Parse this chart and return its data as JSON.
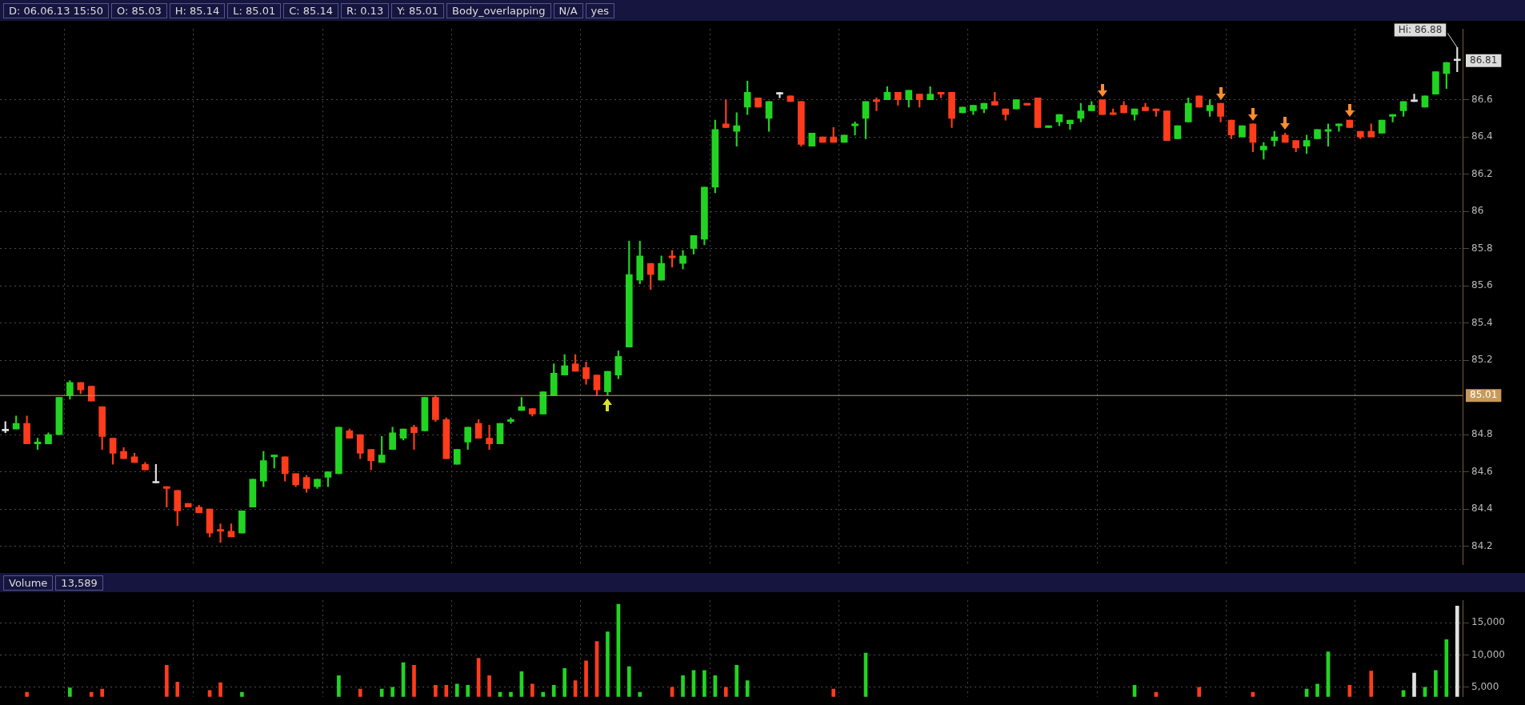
{
  "chart_data": [
    {
      "type": "candlestick",
      "categories": [
        null,
        null,
        null,
        null,
        null,
        null,
        null,
        null,
        null,
        null,
        null,
        null,
        null,
        null,
        null,
        null,
        null,
        null,
        null,
        null,
        null,
        null,
        null,
        null,
        null,
        null,
        null,
        null,
        null,
        null,
        null,
        null,
        null,
        null,
        null,
        null,
        null,
        null,
        null,
        null,
        null,
        null,
        null,
        null,
        null,
        null,
        null,
        null,
        null,
        null,
        null,
        null,
        null,
        null,
        null,
        null,
        null,
        null,
        null,
        null,
        null,
        null,
        null,
        null,
        null,
        null,
        null,
        null,
        null,
        null,
        null,
        null,
        null,
        null,
        null,
        null,
        null,
        null,
        null,
        null,
        null,
        null,
        null,
        null,
        null,
        null,
        null,
        null,
        null,
        null,
        null,
        null,
        null,
        null,
        null,
        null,
        null,
        null,
        null,
        null,
        null,
        null,
        null,
        null,
        null,
        null,
        null,
        null,
        null,
        null,
        null,
        null,
        null,
        null,
        null,
        null,
        null,
        null,
        null,
        null,
        null,
        null,
        null,
        null,
        null,
        null,
        null,
        null,
        null,
        null,
        null,
        null,
        null,
        null,
        null,
        null
      ],
      "ohlc": [
        [
          84.82,
          84.87,
          84.81,
          84.82
        ],
        [
          84.83,
          84.9,
          84.83,
          84.86
        ],
        [
          84.86,
          84.9,
          84.75,
          84.75
        ],
        [
          84.75,
          84.78,
          84.72,
          84.76
        ],
        [
          84.75,
          84.81,
          84.75,
          84.8
        ],
        [
          84.8,
          85.0,
          84.8,
          85.0
        ],
        [
          85.01,
          85.09,
          84.99,
          85.08
        ],
        [
          85.08,
          85.08,
          85.02,
          85.04
        ],
        [
          85.06,
          85.06,
          84.98,
          84.98
        ],
        [
          84.95,
          84.95,
          84.72,
          84.79
        ],
        [
          84.78,
          84.78,
          84.64,
          84.7
        ],
        [
          84.71,
          84.73,
          84.67,
          84.67
        ],
        [
          84.68,
          84.7,
          84.65,
          84.65
        ],
        [
          84.64,
          84.65,
          84.61,
          84.61
        ],
        [
          84.54,
          84.64,
          84.54,
          84.54
        ],
        [
          84.52,
          84.52,
          84.41,
          84.51
        ],
        [
          84.5,
          84.5,
          84.31,
          84.39
        ],
        [
          84.43,
          84.43,
          84.41,
          84.41
        ],
        [
          84.41,
          84.42,
          84.38,
          84.38
        ],
        [
          84.4,
          84.4,
          84.25,
          84.27
        ],
        [
          84.29,
          84.32,
          84.22,
          84.28
        ],
        [
          84.28,
          84.32,
          84.25,
          84.25
        ],
        [
          84.27,
          84.39,
          84.27,
          84.39
        ],
        [
          84.41,
          84.56,
          84.41,
          84.56
        ],
        [
          84.55,
          84.71,
          84.52,
          84.66
        ],
        [
          84.68,
          84.69,
          84.62,
          84.69
        ],
        [
          84.68,
          84.68,
          84.55,
          84.59
        ],
        [
          84.59,
          84.59,
          84.52,
          84.53
        ],
        [
          84.57,
          84.58,
          84.49,
          84.51
        ],
        [
          84.52,
          84.56,
          84.51,
          84.56
        ],
        [
          84.57,
          84.6,
          84.52,
          84.6
        ],
        [
          84.59,
          84.84,
          84.59,
          84.84
        ],
        [
          84.82,
          84.83,
          84.78,
          84.78
        ],
        [
          84.8,
          84.8,
          84.67,
          84.7
        ],
        [
          84.72,
          84.72,
          84.61,
          84.66
        ],
        [
          84.65,
          84.79,
          84.65,
          84.69
        ],
        [
          84.72,
          84.84,
          84.72,
          84.81
        ],
        [
          84.78,
          84.83,
          84.77,
          84.83
        ],
        [
          84.84,
          84.85,
          84.72,
          84.81
        ],
        [
          84.82,
          85.0,
          84.82,
          85.0
        ],
        [
          85.0,
          85.01,
          84.87,
          84.88
        ],
        [
          84.88,
          84.89,
          84.67,
          84.67
        ],
        [
          84.64,
          84.72,
          84.64,
          84.72
        ],
        [
          84.76,
          84.84,
          84.72,
          84.84
        ],
        [
          84.86,
          84.88,
          84.78,
          84.78
        ],
        [
          84.78,
          84.85,
          84.72,
          84.75
        ],
        [
          84.75,
          84.86,
          84.75,
          84.86
        ],
        [
          84.87,
          84.89,
          84.86,
          84.88
        ],
        [
          84.93,
          85.0,
          84.93,
          84.95
        ],
        [
          84.94,
          84.94,
          84.9,
          84.91
        ],
        [
          84.91,
          85.03,
          84.91,
          85.03
        ],
        [
          85.01,
          85.18,
          85.01,
          85.13
        ],
        [
          85.12,
          85.23,
          85.12,
          85.17
        ],
        [
          85.18,
          85.23,
          85.14,
          85.14
        ],
        [
          85.16,
          85.19,
          85.07,
          85.1
        ],
        [
          85.12,
          85.12,
          85.01,
          85.04
        ],
        [
          85.03,
          85.14,
          85.01,
          85.14
        ],
        [
          85.12,
          85.25,
          85.1,
          85.22
        ],
        [
          85.27,
          85.84,
          85.27,
          85.66
        ],
        [
          85.63,
          85.84,
          85.61,
          85.76
        ],
        [
          85.72,
          85.72,
          85.58,
          85.66
        ],
        [
          85.63,
          85.76,
          85.63,
          85.72
        ],
        [
          85.76,
          85.79,
          85.7,
          85.75
        ],
        [
          85.72,
          85.79,
          85.69,
          85.76
        ],
        [
          85.8,
          85.87,
          85.77,
          85.87
        ],
        [
          85.85,
          86.13,
          85.82,
          86.13
        ],
        [
          86.13,
          86.49,
          86.1,
          86.44
        ],
        [
          86.47,
          86.6,
          86.45,
          86.45
        ],
        [
          86.43,
          86.53,
          86.35,
          86.46
        ],
        [
          86.56,
          86.7,
          86.52,
          86.64
        ],
        [
          86.61,
          86.61,
          86.56,
          86.56
        ],
        [
          86.5,
          86.59,
          86.43,
          86.59
        ],
        [
          86.63,
          86.64,
          86.61,
          86.63
        ],
        [
          86.62,
          86.62,
          86.59,
          86.59
        ],
        [
          86.59,
          86.59,
          86.35,
          86.36
        ],
        [
          86.35,
          86.42,
          86.35,
          86.42
        ],
        [
          86.4,
          86.4,
          86.37,
          86.37
        ],
        [
          86.4,
          86.45,
          86.37,
          86.37
        ],
        [
          86.37,
          86.41,
          86.37,
          86.41
        ],
        [
          86.46,
          86.48,
          86.41,
          86.47
        ],
        [
          86.5,
          86.59,
          86.39,
          86.59
        ],
        [
          86.6,
          86.61,
          86.54,
          86.59
        ],
        [
          86.6,
          86.67,
          86.6,
          86.64
        ],
        [
          86.64,
          86.64,
          86.57,
          86.6
        ],
        [
          86.6,
          86.65,
          86.56,
          86.65
        ],
        [
          86.63,
          86.63,
          86.56,
          86.6
        ],
        [
          86.6,
          86.67,
          86.6,
          86.63
        ],
        [
          86.64,
          86.64,
          86.61,
          86.63
        ],
        [
          86.64,
          86.64,
          86.45,
          86.5
        ],
        [
          86.53,
          86.56,
          86.53,
          86.56
        ],
        [
          86.54,
          86.57,
          86.52,
          86.57
        ],
        [
          86.55,
          86.58,
          86.53,
          86.58
        ],
        [
          86.59,
          86.64,
          86.57,
          86.57
        ],
        [
          86.55,
          86.55,
          86.49,
          86.52
        ],
        [
          86.55,
          86.6,
          86.55,
          86.6
        ],
        [
          86.58,
          86.58,
          86.57,
          86.57
        ],
        [
          86.61,
          86.61,
          86.45,
          86.45
        ],
        [
          86.45,
          86.46,
          86.45,
          86.46
        ],
        [
          86.48,
          86.52,
          86.46,
          86.52
        ],
        [
          86.47,
          86.49,
          86.44,
          86.49
        ],
        [
          86.5,
          86.58,
          86.48,
          86.54
        ],
        [
          86.54,
          86.59,
          86.54,
          86.57
        ],
        [
          86.6,
          86.6,
          86.52,
          86.52
        ],
        [
          86.53,
          86.55,
          86.52,
          86.52
        ],
        [
          86.57,
          86.59,
          86.53,
          86.53
        ],
        [
          86.52,
          86.55,
          86.49,
          86.55
        ],
        [
          86.56,
          86.58,
          86.54,
          86.54
        ],
        [
          86.55,
          86.55,
          86.51,
          86.54
        ],
        [
          86.54,
          86.54,
          86.38,
          86.38
        ],
        [
          86.39,
          86.46,
          86.39,
          86.46
        ],
        [
          86.48,
          86.61,
          86.48,
          86.58
        ],
        [
          86.62,
          86.62,
          86.56,
          86.56
        ],
        [
          86.54,
          86.6,
          86.51,
          86.57
        ],
        [
          86.58,
          86.58,
          86.48,
          86.51
        ],
        [
          86.49,
          86.49,
          86.39,
          86.41
        ],
        [
          86.4,
          86.46,
          86.4,
          86.46
        ],
        [
          86.47,
          86.47,
          86.32,
          86.37
        ],
        [
          86.33,
          86.37,
          86.28,
          86.35
        ],
        [
          86.38,
          86.43,
          86.35,
          86.4
        ],
        [
          86.41,
          86.42,
          86.37,
          86.37
        ],
        [
          86.38,
          86.38,
          86.32,
          86.34
        ],
        [
          86.35,
          86.41,
          86.31,
          86.38
        ],
        [
          86.39,
          86.44,
          86.39,
          86.44
        ],
        [
          86.43,
          86.47,
          86.35,
          86.44
        ],
        [
          86.46,
          86.47,
          86.43,
          86.47
        ],
        [
          86.49,
          86.49,
          86.45,
          86.45
        ],
        [
          86.43,
          86.43,
          86.39,
          86.4
        ],
        [
          86.43,
          86.47,
          86.4,
          86.4
        ],
        [
          86.42,
          86.49,
          86.42,
          86.49
        ],
        [
          86.51,
          86.52,
          86.48,
          86.52
        ],
        [
          86.54,
          86.59,
          86.51,
          86.59
        ],
        [
          86.59,
          86.63,
          86.59,
          86.59
        ],
        [
          86.56,
          86.62,
          86.56,
          86.62
        ],
        [
          86.63,
          86.75,
          86.63,
          86.75
        ],
        [
          86.74,
          86.8,
          86.66,
          86.8
        ],
        [
          86.81,
          86.88,
          86.75,
          86.81
        ]
      ],
      "colors": [
        "#e0e0e0",
        "#22d422",
        "#ff3c1c",
        "#22d422",
        "#22d422",
        "#22d422",
        "#22d422",
        "#ff3c1c",
        "#ff3c1c",
        "#ff3c1c",
        "#ff3c1c",
        "#ff3c1c",
        "#ff3c1c",
        "#ff3c1c",
        "#e0e0e0",
        "#ff3c1c",
        "#ff3c1c",
        "#ff3c1c",
        "#ff3c1c",
        "#ff3c1c",
        "#ff3c1c",
        "#ff3c1c",
        "#22d422",
        "#22d422",
        "#22d422",
        "#22d422",
        "#ff3c1c",
        "#ff3c1c",
        "#ff3c1c",
        "#22d422",
        "#22d422",
        "#22d422",
        "#ff3c1c",
        "#ff3c1c",
        "#ff3c1c",
        "#22d422",
        "#22d422",
        "#22d422",
        "#ff3c1c",
        "#22d422",
        "#ff3c1c",
        "#ff3c1c",
        "#22d422",
        "#22d422",
        "#ff3c1c",
        "#ff3c1c",
        "#22d422",
        "#22d422",
        "#22d422",
        "#ff3c1c",
        "#22d422",
        "#22d422",
        "#22d422",
        "#ff3c1c",
        "#ff3c1c",
        "#ff3c1c",
        "#22d422",
        "#22d422",
        "#22d422",
        "#22d422",
        "#ff3c1c",
        "#22d422",
        "#ff3c1c",
        "#22d422",
        "#22d422",
        "#22d422",
        "#22d422",
        "#ff3c1c",
        "#22d422",
        "#22d422",
        "#ff3c1c",
        "#22d422",
        "#e0e0e0",
        "#ff3c1c",
        "#ff3c1c",
        "#22d422",
        "#ff3c1c",
        "#ff3c1c",
        "#22d422",
        "#22d422",
        "#22d422",
        "#ff3c1c",
        "#22d422",
        "#ff3c1c",
        "#22d422",
        "#ff3c1c",
        "#22d422",
        "#ff3c1c",
        "#ff3c1c",
        "#22d422",
        "#22d422",
        "#22d422",
        "#ff3c1c",
        "#ff3c1c",
        "#22d422",
        "#ff3c1c",
        "#ff3c1c",
        "#22d422",
        "#22d422",
        "#22d422",
        "#22d422",
        "#22d422",
        "#ff3c1c",
        "#ff3c1c",
        "#ff3c1c",
        "#22d422",
        "#ff3c1c",
        "#ff3c1c",
        "#ff3c1c",
        "#22d422",
        "#22d422",
        "#ff3c1c",
        "#22d422",
        "#ff3c1c",
        "#ff3c1c",
        "#22d422",
        "#ff3c1c",
        "#22d422",
        "#22d422",
        "#ff3c1c",
        "#ff3c1c",
        "#22d422",
        "#22d422",
        "#22d422",
        "#22d422",
        "#ff3c1c",
        "#ff3c1c",
        "#ff3c1c",
        "#22d422",
        "#22d422",
        "#22d422",
        "#e0e0e0",
        "#22d422",
        "#22d422",
        "#22d422",
        "#e0e0e0"
      ],
      "ylim": [
        84.1,
        86.98
      ],
      "yticks": [
        84.2,
        84.4,
        84.6,
        84.8,
        85.2,
        85.4,
        85.6,
        85.8,
        86,
        86.2,
        86.4,
        86.6
      ],
      "grid": true,
      "tick_labels": "y",
      "ref_lines": [
        {
          "axis": "y",
          "value": 85.01,
          "label": "85.01",
          "color": "#c89a5a"
        }
      ],
      "annotations": [
        "D: 06.06.13 15:50",
        "O: 85.03",
        "H: 85.14",
        "L: 85.01",
        "C: 85.14",
        "R: 0.13",
        "Y: 85.01",
        "Body_overlapping",
        "N/A",
        "yes",
        "Hi: 86.88",
        "86.81"
      ]
    },
    {
      "type": "bar",
      "title": "Volume",
      "categories": [
        null,
        null,
        null,
        null,
        null,
        null,
        null,
        null,
        null,
        null,
        null,
        null,
        null,
        null,
        null,
        null,
        null,
        null,
        null,
        null,
        null,
        null,
        null,
        null,
        null,
        null,
        null,
        null,
        null,
        null,
        null,
        null,
        null,
        null,
        null,
        null,
        null,
        null,
        null,
        null,
        null,
        null,
        null,
        null,
        null,
        null,
        null,
        null,
        null,
        null,
        null,
        null,
        null,
        null,
        null,
        null,
        null,
        null,
        null,
        null,
        null,
        null,
        null,
        null,
        null,
        null,
        null,
        null,
        null,
        null,
        null,
        null,
        null,
        null,
        null,
        null,
        null,
        null,
        null,
        null,
        null,
        null,
        null,
        null,
        null,
        null,
        null,
        null,
        null,
        null,
        null,
        null,
        null,
        null,
        null,
        null,
        null,
        null,
        null,
        null,
        null,
        null,
        null,
        null,
        null,
        null,
        null,
        null,
        null,
        null,
        null,
        null,
        null,
        null,
        null,
        null,
        null,
        null,
        null,
        null,
        null,
        null,
        null,
        null,
        null,
        null,
        null,
        null,
        null,
        null,
        null,
        null,
        null,
        null,
        null,
        null
      ],
      "values": [
        null,
        null,
        4200,
        null,
        null,
        null,
        4900,
        null,
        4200,
        4700,
        null,
        null,
        null,
        null,
        null,
        8400,
        5800,
        null,
        null,
        4500,
        5700,
        null,
        4200,
        null,
        null,
        null,
        null,
        null,
        null,
        null,
        null,
        6800,
        null,
        4700,
        null,
        4700,
        5000,
        8800,
        8400,
        null,
        5300,
        5300,
        5500,
        5300,
        9500,
        6800,
        4200,
        4200,
        7400,
        5500,
        4200,
        5300,
        7900,
        6000,
        9100,
        12100,
        13600,
        17900,
        8200,
        4200,
        null,
        null,
        5000,
        6800,
        7600,
        7600,
        6800,
        5000,
        8400,
        6000,
        null,
        null,
        null,
        null,
        null,
        null,
        null,
        4700,
        null,
        null,
        10300,
        null,
        null,
        null,
        null,
        null,
        null,
        null,
        null,
        null,
        null,
        null,
        null,
        null,
        null,
        null,
        null,
        null,
        null,
        null,
        null,
        null,
        null,
        null,
        null,
        5300,
        null,
        4200,
        null,
        null,
        null,
        5000,
        null,
        null,
        null,
        null,
        4200,
        null,
        null,
        null,
        null,
        4700,
        5500,
        10500,
        null,
        5300,
        null,
        7500,
        null,
        null,
        4500,
        7200,
        5000,
        7600,
        12400,
        17600
      ],
      "colors": [
        "#e0e0e0",
        "#22d422",
        "#ff3c1c",
        "#22d422",
        "#22d422",
        "#22d422",
        "#22d422",
        "#ff3c1c",
        "#ff3c1c",
        "#ff3c1c",
        "#ff3c1c",
        "#ff3c1c",
        "#ff3c1c",
        "#ff3c1c",
        "#e0e0e0",
        "#ff3c1c",
        "#ff3c1c",
        "#ff3c1c",
        "#ff3c1c",
        "#ff3c1c",
        "#ff3c1c",
        "#ff3c1c",
        "#22d422",
        "#22d422",
        "#22d422",
        "#22d422",
        "#ff3c1c",
        "#ff3c1c",
        "#ff3c1c",
        "#22d422",
        "#22d422",
        "#22d422",
        "#ff3c1c",
        "#ff3c1c",
        "#ff3c1c",
        "#22d422",
        "#22d422",
        "#22d422",
        "#ff3c1c",
        "#22d422",
        "#ff3c1c",
        "#ff3c1c",
        "#22d422",
        "#22d422",
        "#ff3c1c",
        "#ff3c1c",
        "#22d422",
        "#22d422",
        "#22d422",
        "#ff3c1c",
        "#22d422",
        "#22d422",
        "#22d422",
        "#ff3c1c",
        "#ff3c1c",
        "#ff3c1c",
        "#22d422",
        "#22d422",
        "#22d422",
        "#22d422",
        "#ff3c1c",
        "#22d422",
        "#ff3c1c",
        "#22d422",
        "#22d422",
        "#22d422",
        "#22d422",
        "#ff3c1c",
        "#22d422",
        "#22d422",
        "#ff3c1c",
        "#22d422",
        "#e0e0e0",
        "#ff3c1c",
        "#ff3c1c",
        "#22d422",
        "#ff3c1c",
        "#ff3c1c",
        "#22d422",
        "#22d422",
        "#22d422",
        "#ff3c1c",
        "#22d422",
        "#ff3c1c",
        "#22d422",
        "#ff3c1c",
        "#22d422",
        "#ff3c1c",
        "#ff3c1c",
        "#22d422",
        "#22d422",
        "#22d422",
        "#ff3c1c",
        "#ff3c1c",
        "#22d422",
        "#ff3c1c",
        "#ff3c1c",
        "#22d422",
        "#22d422",
        "#22d422",
        "#22d422",
        "#22d422",
        "#ff3c1c",
        "#ff3c1c",
        "#ff3c1c",
        "#22d422",
        "#ff3c1c",
        "#ff3c1c",
        "#ff3c1c",
        "#22d422",
        "#22d422",
        "#ff3c1c",
        "#22d422",
        "#ff3c1c",
        "#ff3c1c",
        "#22d422",
        "#ff3c1c",
        "#22d422",
        "#22d422",
        "#ff3c1c",
        "#ff3c1c",
        "#22d422",
        "#22d422",
        "#22d422",
        "#22d422",
        "#ff3c1c",
        "#ff3c1c",
        "#ff3c1c",
        "#22d422",
        "#22d422",
        "#22d422",
        "#e0e0e0",
        "#22d422",
        "#22d422",
        "#22d422",
        "#e0e0e0"
      ],
      "ylim": [
        3500,
        18500
      ],
      "yticks": [
        {
          "value": 5000,
          "label": "5,000"
        },
        {
          "value": 10000,
          "label": "10,000"
        },
        {
          "value": 15000,
          "label": "15,000"
        }
      ],
      "grid": true,
      "tick_labels": "y",
      "annotations": [
        "13,589"
      ]
    }
  ]
}
